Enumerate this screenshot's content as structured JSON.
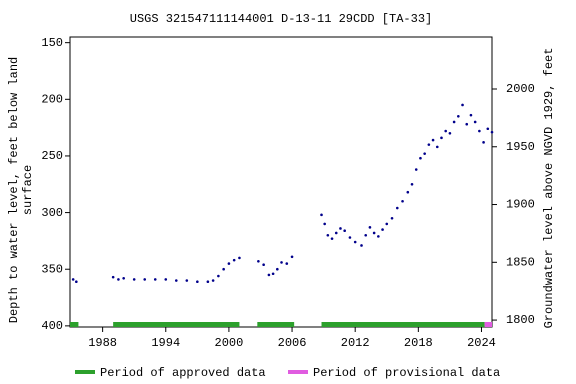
{
  "chart_data": {
    "type": "scatter",
    "title": "USGS 321547111144001 D-13-11 29CDD [TA-33]",
    "ylabel": [
      "Depth to water level, feet below land",
      "surface"
    ],
    "y2label": "Groundwater level above NGVD 1929, feet",
    "xlim": [
      1984.9,
      2025.0
    ],
    "xticks": [
      1988,
      1994,
      2000,
      2006,
      2012,
      2018,
      2024
    ],
    "ylim": [
      401,
      145
    ],
    "yticks": [
      150,
      200,
      250,
      300,
      350,
      400
    ],
    "y2lim": [
      1794,
      2045
    ],
    "y2ticks": [
      1800,
      1850,
      1900,
      1950,
      2000
    ],
    "x": [
      1985.2,
      1985.5,
      null,
      1989.0,
      1989.5,
      1990.0,
      1991.0,
      1992.0,
      1993.0,
      1994.0,
      1995.0,
      1996.0,
      1997.0,
      1998.0,
      1998.5,
      1999.0,
      1999.5,
      2000.0,
      2000.5,
      2001.0,
      null,
      2002.8,
      2003.3,
      2003.8,
      2004.2,
      2004.6,
      2005.0,
      2005.5,
      2006.0,
      null,
      2008.8,
      2009.1,
      2009.4,
      2009.8,
      2010.2,
      2010.6,
      2011.0,
      2011.5,
      2012.0,
      2012.6,
      2013.0,
      2013.4,
      2013.8,
      2014.2,
      2014.6,
      2015.0,
      2015.5,
      2016.0,
      2016.5,
      2017.0,
      2017.4,
      2017.8,
      2018.2,
      2018.6,
      2019.0,
      2019.4,
      2019.8,
      2020.2,
      2020.6,
      2021.0,
      2021.4,
      2021.8,
      2022.2,
      2022.6,
      2023.0,
      2023.4,
      2023.8,
      2024.2,
      2024.6,
      2025.0
    ],
    "series": [
      {
        "color": "#00008b",
        "values": [
          359,
          361,
          null,
          357,
          359,
          358,
          359,
          359,
          359,
          359,
          360,
          360,
          361,
          361,
          360,
          356,
          350,
          345,
          342,
          340,
          null,
          343,
          346,
          355,
          354,
          350,
          344,
          345,
          339,
          null,
          302,
          310,
          320,
          323,
          318,
          314,
          316,
          322,
          326,
          329,
          320,
          313,
          318,
          321,
          315,
          310,
          305,
          296,
          290,
          282,
          275,
          262,
          252,
          248,
          240,
          236,
          242,
          234,
          228,
          230,
          220,
          215,
          205,
          222,
          214,
          220,
          228,
          238,
          226,
          229
        ]
      }
    ],
    "periods": [
      {
        "name": "Period of approved data",
        "color": "#2ca02c",
        "ranges": [
          [
            1984.9,
            1985.7
          ],
          [
            1989.0,
            2001.0
          ],
          [
            2002.7,
            2006.2
          ],
          [
            2008.8,
            2024.3
          ]
        ]
      },
      {
        "name": "Period of provisional data",
        "color": "#e05ce0",
        "ranges": [
          [
            2024.3,
            2025.0
          ]
        ]
      }
    ]
  }
}
